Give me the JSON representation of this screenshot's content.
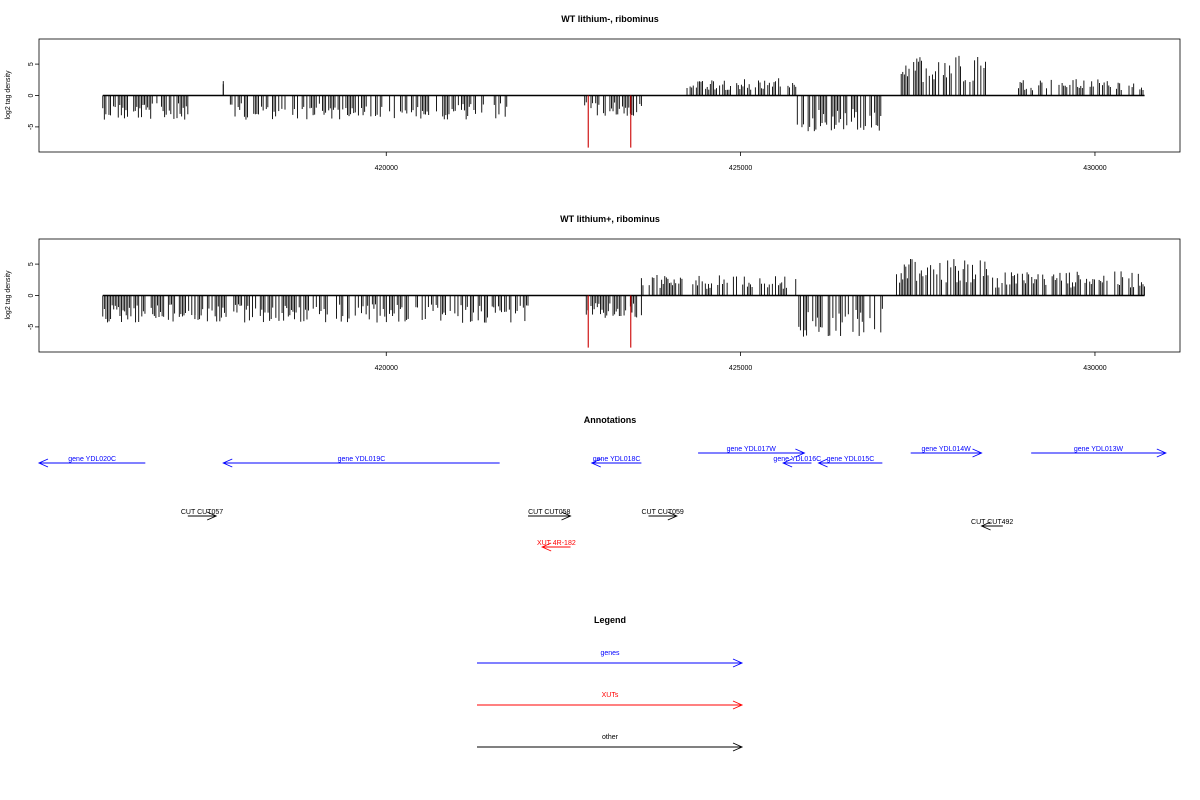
{
  "chart_data": [
    {
      "type": "bar",
      "title": "WT lithium-, ribominus",
      "xlabel": "",
      "ylabel": "log2 tag density",
      "xlim": [
        415100,
        431200
      ],
      "ylim": [
        -9,
        9
      ],
      "x_ticks": [
        "420000",
        "425000",
        "430000"
      ],
      "y_ticks": [
        "-5",
        "0",
        "5"
      ],
      "profile": [
        {
          "from": 416000,
          "to": 417200,
          "y": -3.5
        },
        {
          "from": 417700,
          "to": 417700,
          "y": 2.3
        },
        {
          "from": 417800,
          "to": 421700,
          "y": -3.5
        },
        {
          "from": 422800,
          "to": 423600,
          "y": -3.0
        },
        {
          "from": 424200,
          "to": 425800,
          "y": 2.5
        },
        {
          "from": 425800,
          "to": 427000,
          "y": -5.2
        },
        {
          "from": 427200,
          "to": 428500,
          "y": 6.0
        },
        {
          "from": 428900,
          "to": 430700,
          "y": 2.4
        }
      ],
      "highlight_spikes": [
        {
          "x": 422850,
          "y": -8.3
        },
        {
          "x": 423450,
          "y": -8.3
        }
      ]
    },
    {
      "type": "bar",
      "title": "WT lithium+, ribominus",
      "xlabel": "",
      "ylabel": "log2 tag density",
      "xlim": [
        415100,
        431200
      ],
      "ylim": [
        -9,
        9
      ],
      "x_ticks": [
        "420000",
        "425000",
        "430000"
      ],
      "y_ticks": [
        "-5",
        "0",
        "5"
      ],
      "profile": [
        {
          "from": 416000,
          "to": 417300,
          "y": -4.0
        },
        {
          "from": 417300,
          "to": 422000,
          "y": -4.0
        },
        {
          "from": 422800,
          "to": 423600,
          "y": -3.5
        },
        {
          "from": 423600,
          "to": 425800,
          "y": 3.0
        },
        {
          "from": 425800,
          "to": 427000,
          "y": -6.0
        },
        {
          "from": 427200,
          "to": 428600,
          "y": 5.5
        },
        {
          "from": 428600,
          "to": 430700,
          "y": 3.5
        }
      ],
      "highlight_spikes": [
        {
          "x": 422850,
          "y": -8.3
        },
        {
          "x": 423450,
          "y": -8.3
        }
      ]
    }
  ],
  "annotations": {
    "title": "Annotations",
    "features": [
      {
        "label": "gene YDL020C",
        "from": 416600,
        "to": 415100,
        "row": 0,
        "color": "blue"
      },
      {
        "label": "gene YDL019C",
        "from": 421600,
        "to": 417700,
        "row": 0,
        "color": "blue"
      },
      {
        "label": "gene YDL018C",
        "from": 423600,
        "to": 422900,
        "row": 0,
        "color": "blue"
      },
      {
        "label": "gene YDL017W",
        "from": 424400,
        "to": 425900,
        "row": 1,
        "color": "blue"
      },
      {
        "label": "gene YDL016C",
        "from": 426000,
        "to": 425600,
        "row": 0,
        "color": "blue"
      },
      {
        "label": "gene YDL015C",
        "from": 427000,
        "to": 426100,
        "row": 0,
        "color": "blue"
      },
      {
        "label": "gene YDL014W",
        "from": 427400,
        "to": 428400,
        "row": 1,
        "color": "blue"
      },
      {
        "label": "gene YDL013W",
        "from": 429100,
        "to": 431000,
        "row": 1,
        "color": "blue"
      },
      {
        "label": "CUT CUT057",
        "from": 417200,
        "to": 417600,
        "row": 2,
        "color": "black"
      },
      {
        "label": "CUT CUT058",
        "from": 422000,
        "to": 422600,
        "row": 2,
        "color": "black"
      },
      {
        "label": "CUT CUT059",
        "from": 423700,
        "to": 424100,
        "row": 2,
        "color": "black"
      },
      {
        "label": "CUT CUT492",
        "from": 428700,
        "to": 428400,
        "row": 3,
        "color": "black"
      },
      {
        "label": "XUT 4R-182",
        "from": 422600,
        "to": 422200,
        "row": 4,
        "color": "red"
      }
    ]
  },
  "legend": {
    "title": "Legend",
    "entries": [
      {
        "label": "genes",
        "color": "#0000ff"
      },
      {
        "label": "XUTs",
        "color": "#ff0000"
      },
      {
        "label": "other",
        "color": "#000000"
      }
    ]
  }
}
